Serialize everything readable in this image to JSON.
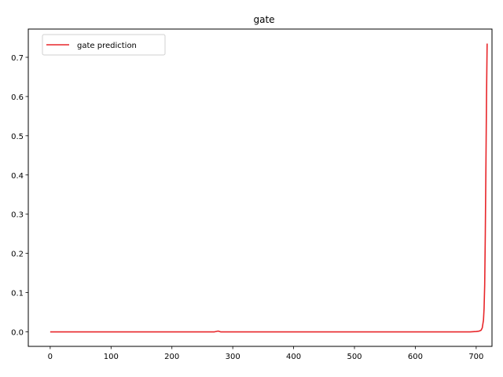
{
  "chart_data": {
    "type": "line",
    "title": "gate",
    "xlabel": "",
    "ylabel": "",
    "xlim": [
      -36,
      726
    ],
    "ylim": [
      -0.037,
      0.772
    ],
    "xticks": [
      0,
      100,
      200,
      300,
      400,
      500,
      600,
      700
    ],
    "yticks": [
      0.0,
      0.1,
      0.2,
      0.3,
      0.4,
      0.5,
      0.6,
      0.7
    ],
    "xtick_labels": [
      "0",
      "100",
      "200",
      "300",
      "400",
      "500",
      "600",
      "700"
    ],
    "ytick_labels": [
      "0.0",
      "0.1",
      "0.2",
      "0.3",
      "0.4",
      "0.5",
      "0.6",
      "0.7"
    ],
    "grid": false,
    "legend": {
      "position": "top-left"
    },
    "series": [
      {
        "name": "gate prediction",
        "color": "#e8262a",
        "x": [
          0,
          100,
          200,
          270,
          276,
          280,
          300,
          400,
          500,
          600,
          690,
          700,
          705,
          708,
          710,
          712,
          713,
          714,
          715,
          716,
          717,
          718
        ],
        "y": [
          0.0,
          0.0,
          0.0,
          0.0,
          0.002,
          0.0,
          0.0,
          0.0,
          0.0,
          0.0,
          0.0,
          0.001,
          0.002,
          0.004,
          0.01,
          0.03,
          0.06,
          0.12,
          0.25,
          0.42,
          0.6,
          0.735
        ]
      }
    ]
  }
}
